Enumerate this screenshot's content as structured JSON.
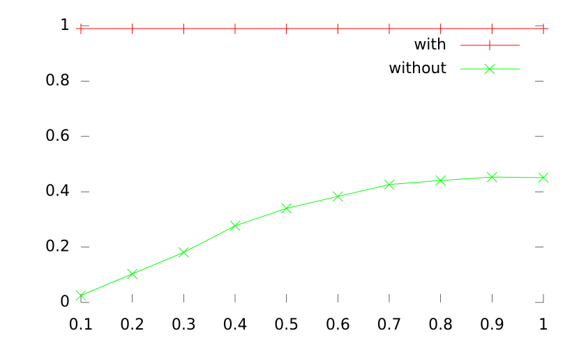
{
  "chart_data": {
    "type": "line",
    "x": [
      0.1,
      0.2,
      0.3,
      0.4,
      0.5,
      0.6,
      0.7,
      0.8,
      0.9,
      1
    ],
    "series": [
      {
        "name": "with",
        "color": "#ff0000",
        "marker": "plus",
        "values": [
          0.99,
          0.99,
          0.99,
          0.99,
          0.99,
          0.99,
          0.99,
          0.99,
          0.99,
          0.99
        ]
      },
      {
        "name": "without",
        "color": "#00ff00",
        "marker": "cross",
        "values": [
          0.025,
          0.103,
          0.181,
          0.277,
          0.34,
          0.383,
          0.426,
          0.441,
          0.453,
          0.451
        ]
      }
    ],
    "xlim": [
      0.1,
      1
    ],
    "ylim": [
      0,
      1
    ],
    "xticks": [
      0.1,
      0.2,
      0.3,
      0.4,
      0.5,
      0.6,
      0.7,
      0.8,
      0.9,
      1
    ],
    "yticks": [
      0,
      0.2,
      0.4,
      0.6,
      0.8,
      1
    ],
    "grid": false,
    "legend": "top right"
  }
}
